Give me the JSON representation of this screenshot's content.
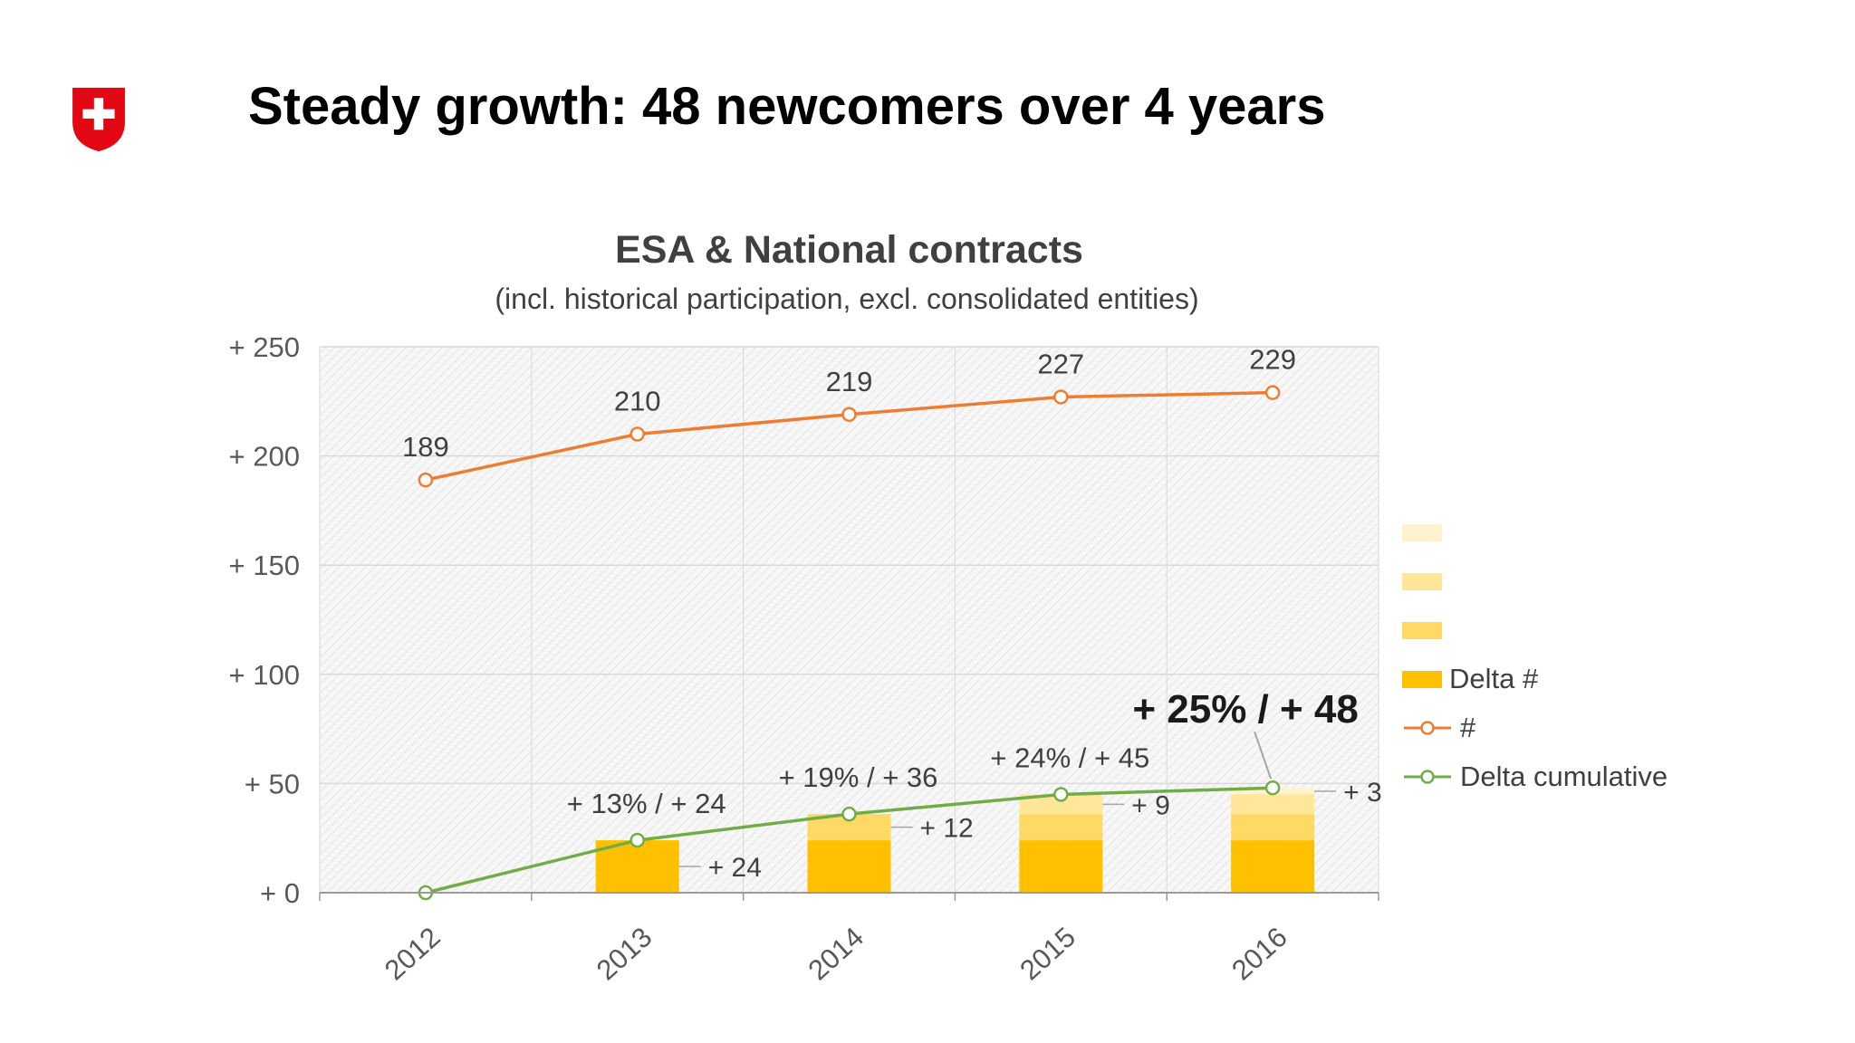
{
  "slide": {
    "title": "Steady growth: 48 newcomers over 4 years",
    "logo_color": "#e30613"
  },
  "chart": {
    "title": "ESA & National contracts",
    "subtitle": "(incl. historical participation, excl. consolidated entities)"
  },
  "chart_data": {
    "type": "combo-line-stacked-bar",
    "title": "ESA & National contracts",
    "subtitle": "(incl. historical participation, excl. consolidated entities)",
    "categories": [
      "2012",
      "2013",
      "2014",
      "2015",
      "2016"
    ],
    "y_axis": {
      "min": 0,
      "max": 250,
      "step": 50,
      "tick_labels": [
        "+ 0",
        "+ 50",
        "+ 100",
        "+ 150",
        "+ 200",
        "+ 250"
      ]
    },
    "grid": true,
    "series": [
      {
        "name": "#",
        "type": "line",
        "color": "#ED7D31",
        "values": [
          189,
          210,
          219,
          227,
          229
        ],
        "labels": [
          "189",
          "210",
          "219",
          "227",
          "229"
        ]
      },
      {
        "name": "Delta cumulative",
        "type": "line",
        "color": "#70AD47",
        "values": [
          0,
          24,
          36,
          45,
          48
        ]
      },
      {
        "name": "Delta #",
        "type": "stacked-bar",
        "segment_colors": [
          "#FFC000",
          "#FFD966",
          "#FFE699",
          "#FFF2CC"
        ],
        "deltas": [
          0,
          24,
          12,
          9,
          3
        ]
      }
    ],
    "bar_segment_labels": [
      {
        "category": "2013",
        "text": "+ 24"
      },
      {
        "category": "2014",
        "text": "+ 12"
      },
      {
        "category": "2015",
        "text": "+ 9"
      },
      {
        "category": "2016",
        "text": "+ 3"
      }
    ],
    "growth_annotations": [
      {
        "category": "2013",
        "text": "+ 13% / + 24",
        "emphasis": false
      },
      {
        "category": "2014",
        "text": "+ 19% / + 36",
        "emphasis": false
      },
      {
        "category": "2015",
        "text": "+ 24% / + 45",
        "emphasis": false
      },
      {
        "category": "2016",
        "text": "+ 25% / + 48",
        "emphasis": true
      }
    ],
    "legend": {
      "position": "right",
      "items": [
        {
          "swatch": "#FFF2CC",
          "label": ""
        },
        {
          "swatch": "#FFE699",
          "label": ""
        },
        {
          "swatch": "#FFD966",
          "label": ""
        },
        {
          "swatch": "#FFC000",
          "label": "Delta #"
        },
        {
          "marker": "line",
          "color": "#ED7D31",
          "label": "#"
        },
        {
          "marker": "line",
          "color": "#70AD47",
          "label": "Delta cumulative"
        }
      ]
    }
  }
}
